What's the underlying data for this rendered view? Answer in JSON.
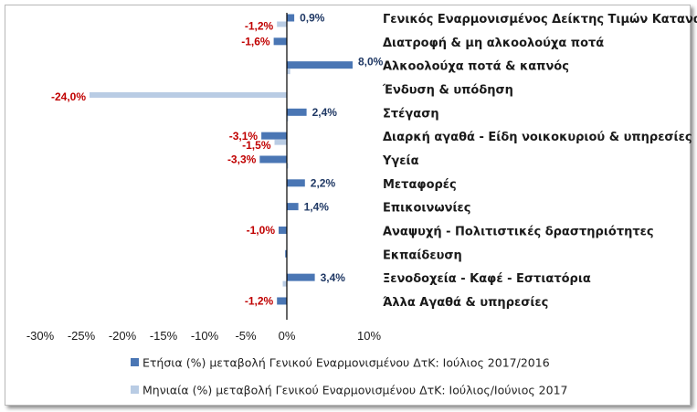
{
  "chart_data": {
    "type": "bar",
    "orientation": "horizontal",
    "categories": [
      "Γενικός Εναρμονισμένος Δείκτης Τιμών Καταναλωτή",
      "Διατροφή & μη αλκοολούχα ποτά",
      "Αλκοολούχα ποτά & καπνός",
      "Ένδυση & υπόδηση",
      "Στέγαση",
      "Διαρκή αγαθά - Είδη νοικοκυριού & υπηρεσίες",
      "Υγεία",
      "Μεταφορές",
      "Επικοινωνίες",
      "Αναψυχή  - Πολιτιστικές δραστηριότητες",
      "Εκπαίδευση",
      "Ξενοδοχεία - Καφέ - Εστιατόρια",
      "Άλλα Αγαθά & υπηρεσίες"
    ],
    "series": [
      {
        "name": "Ετήσια (%) μεταβολή Γενικού Εναρμονισμένου ΔτΚ: Ιούλιος 2017/2016",
        "color": "#4a76b4",
        "values": [
          0.9,
          -1.6,
          8.0,
          0.0,
          2.4,
          -3.1,
          -3.3,
          2.2,
          1.4,
          -1.0,
          -0.2,
          3.4,
          -1.2
        ],
        "labels": [
          "0,9%",
          "-1,6%",
          "8,0%",
          "",
          "2,4%",
          "-3,1%",
          "-3,3%",
          "2,2%",
          "1,4%",
          "-1,0%",
          "",
          "3,4%",
          "-1,2%"
        ]
      },
      {
        "name": "Μηνιαία (%) μεταβολή Γενικού Εναρμονισμένου ΔτΚ: Ιούλιος/Ιούνιος 2017",
        "color": "#b9cce4",
        "values": [
          -1.2,
          0.0,
          0.4,
          -24.0,
          0.1,
          -1.5,
          0.1,
          0.0,
          0.0,
          0.0,
          0.0,
          -0.5,
          0.0
        ],
        "labels": [
          "-1,2%",
          "",
          "",
          "-24,0%",
          "",
          "-1,5%",
          "",
          "",
          "",
          "",
          "",
          "",
          ""
        ]
      }
    ],
    "xlim": [
      -30,
      10
    ],
    "xticks": [
      -30,
      -25,
      -20,
      -15,
      -10,
      -5,
      0,
      10
    ],
    "xtick_labels": [
      "-30%",
      "-25%",
      "-20%",
      "-15%",
      "-10%",
      "-5%",
      "0%",
      "10%"
    ],
    "label_colors": {
      "positive": "#1f3864",
      "negative": "#c00000"
    },
    "legend_position": "bottom",
    "grid": false
  }
}
